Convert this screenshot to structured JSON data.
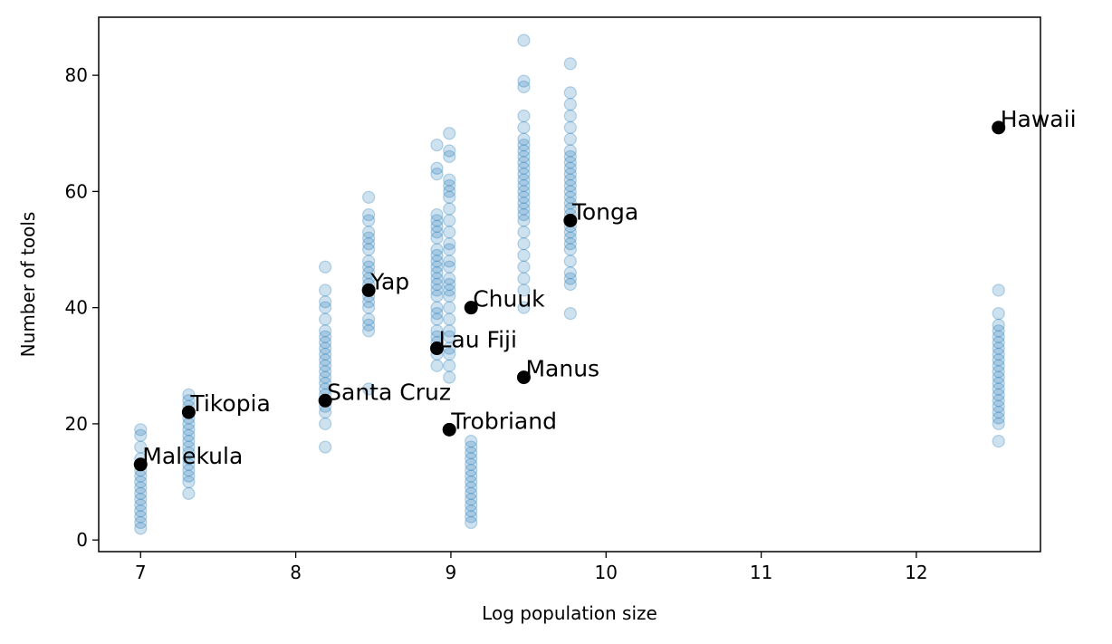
{
  "chart_data": {
    "type": "scatter",
    "xlabel": "Log population size",
    "ylabel": "Number of tools",
    "xlim": [
      6.73,
      12.8
    ],
    "ylim": [
      -2,
      90
    ],
    "xticks": [
      "7",
      "8",
      "9",
      "10",
      "11",
      "12"
    ],
    "yticks": [
      "0",
      "20",
      "40",
      "60",
      "80"
    ],
    "grid": false,
    "colors": {
      "samples": "#1f77b4",
      "observed": "#000000"
    },
    "sample_series": [
      {
        "x": 7.0,
        "values": [
          2,
          3,
          4,
          5,
          6,
          7,
          8,
          9,
          10,
          11,
          12,
          13,
          14,
          16,
          18,
          19
        ]
      },
      {
        "x": 7.31,
        "values": [
          8,
          10,
          11,
          12,
          13,
          14,
          15,
          16,
          17,
          18,
          19,
          20,
          21,
          22,
          23,
          24,
          25
        ]
      },
      {
        "x": 8.19,
        "values": [
          16,
          20,
          22,
          23,
          24,
          25,
          26,
          27,
          28,
          29,
          30,
          31,
          32,
          33,
          34,
          35,
          36,
          38,
          40,
          41,
          43,
          47
        ]
      },
      {
        "x": 8.47,
        "values": [
          26,
          36,
          37,
          38,
          40,
          41,
          42,
          43,
          44,
          45,
          46,
          47,
          48,
          50,
          51,
          52,
          53,
          55,
          56,
          59
        ]
      },
      {
        "x": 8.91,
        "values": [
          30,
          32,
          34,
          35,
          36,
          38,
          39,
          40,
          42,
          43,
          44,
          45,
          46,
          47,
          48,
          49,
          50,
          52,
          53,
          54,
          55,
          56,
          63,
          64,
          68
        ]
      },
      {
        "x": 8.99,
        "values": [
          28,
          30,
          32,
          33,
          35,
          36,
          38,
          40,
          42,
          43,
          44,
          45,
          47,
          48,
          50,
          51,
          53,
          55,
          57,
          59,
          60,
          61,
          62,
          66,
          67,
          70
        ]
      },
      {
        "x": 9.13,
        "values": [
          3,
          4,
          5,
          6,
          7,
          8,
          9,
          10,
          11,
          12,
          13,
          14,
          15,
          16,
          17
        ]
      },
      {
        "x": 9.47,
        "values": [
          40,
          43,
          45,
          47,
          49,
          51,
          53,
          55,
          56,
          57,
          58,
          59,
          60,
          61,
          62,
          63,
          64,
          65,
          66,
          67,
          68,
          69,
          71,
          73,
          78,
          79,
          86
        ]
      },
      {
        "x": 9.77,
        "values": [
          39,
          44,
          45,
          46,
          48,
          50,
          51,
          52,
          53,
          54,
          55,
          56,
          57,
          58,
          59,
          60,
          61,
          62,
          63,
          64,
          65,
          66,
          67,
          69,
          71,
          73,
          75,
          77,
          82
        ]
      },
      {
        "x": 12.53,
        "values": [
          17,
          20,
          21,
          22,
          23,
          24,
          25,
          26,
          27,
          28,
          29,
          30,
          31,
          32,
          33,
          34,
          35,
          36,
          37,
          39,
          43
        ]
      }
    ],
    "observed": [
      {
        "label": "Malekula",
        "x": 7.0,
        "y": 13
      },
      {
        "label": "Tikopia",
        "x": 7.31,
        "y": 22
      },
      {
        "label": "Santa Cruz",
        "x": 8.19,
        "y": 24
      },
      {
        "label": "Yap",
        "x": 8.47,
        "y": 43
      },
      {
        "label": "Lau Fiji",
        "x": 8.91,
        "y": 33
      },
      {
        "label": "Trobriand",
        "x": 8.99,
        "y": 19
      },
      {
        "label": "Chuuk",
        "x": 9.13,
        "y": 40
      },
      {
        "label": "Manus",
        "x": 9.47,
        "y": 28
      },
      {
        "label": "Tonga",
        "x": 9.77,
        "y": 55
      },
      {
        "label": "Hawaii",
        "x": 12.53,
        "y": 71
      }
    ]
  }
}
